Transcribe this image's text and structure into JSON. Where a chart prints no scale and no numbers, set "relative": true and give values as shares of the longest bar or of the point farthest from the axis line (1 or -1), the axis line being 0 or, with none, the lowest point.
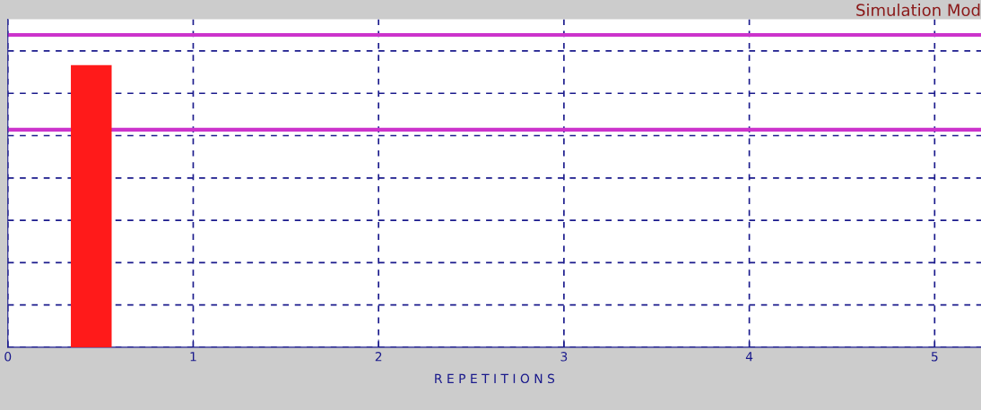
{
  "chart_data": {
    "type": "bar",
    "title": "Simulation Mod",
    "xlabel": "R E P E T I T I O N S",
    "x": [
      0.45
    ],
    "values": [
      1
    ],
    "color": "#ff1a1a",
    "relative": true,
    "xlim": [
      0,
      5.25
    ],
    "xticks": [
      0,
      1,
      2,
      3,
      4,
      5
    ],
    "ref_lines": [
      {
        "axis": "y",
        "value": 1.107,
        "color": "#cc33cc"
      },
      {
        "axis": "y",
        "value": 0.771,
        "color": "#cc33cc"
      }
    ],
    "grid": true
  }
}
